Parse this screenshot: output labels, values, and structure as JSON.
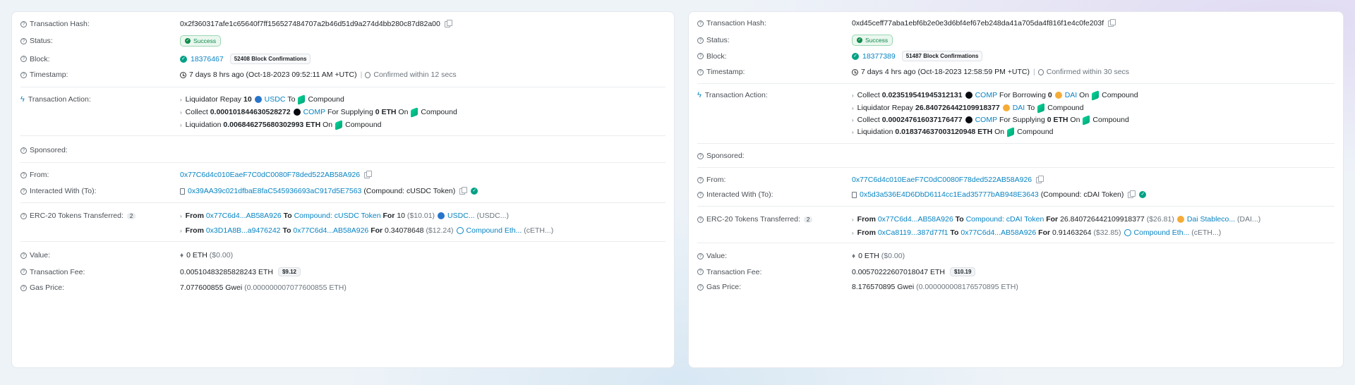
{
  "labels": {
    "tx_hash": "Transaction Hash:",
    "status": "Status:",
    "block": "Block:",
    "timestamp": "Timestamp:",
    "tx_action": "Transaction Action:",
    "sponsored": "Sponsored:",
    "from": "From:",
    "interacted": "Interacted With (To):",
    "erc20": "ERC-20 Tokens Transferred:",
    "value": "Value:",
    "tx_fee": "Transaction Fee:",
    "gas_price": "Gas Price:"
  },
  "common": {
    "success": "Success",
    "to": "To",
    "on": "On",
    "from_word": "From",
    "for_word": "For",
    "compound": "Compound",
    "confirmed_sep": "|"
  },
  "left": {
    "tx_hash": "0x2f360317afe1c65640f7ff156527484707a2b46d51d9a274d4bb280c87d82a00",
    "block_number": "18376467",
    "block_confirmations": "52408 Block Confirmations",
    "timestamp": "7 days 8 hrs ago (Oct-18-2023 09:52:11 AM +UTC)",
    "confirmed_within": "Confirmed within 12 secs",
    "actions": [
      {
        "verb": "Liquidator Repay",
        "amount": "10",
        "token": "USDC",
        "rest": "To",
        "protocol": "Compound"
      },
      {
        "verb": "Collect",
        "amount": "0.000101844630528272",
        "token": "COMP",
        "rest": "For Supplying",
        "amount2": "0 ETH",
        "protocol": "Compound"
      },
      {
        "verb": "Liquidation",
        "amount": "0.006846275680302993 ETH",
        "protocol": "Compound"
      }
    ],
    "from": "0x77C6d4c010EaeF7C0dC0080F78ded522AB58A926",
    "interacted_address": "0x39AA39c021dfbaE8faC545936693aC917d5E7563",
    "interacted_name": "(Compound: cUSDC Token)",
    "erc20_count": "2",
    "transfers": [
      {
        "from": "0x77C6d4...AB58A926",
        "to": "Compound: cUSDC Token",
        "amount": "10",
        "usd": "($10.01)",
        "token": "USDC...",
        "symbol": "(USDC...)"
      },
      {
        "from": "0x3D1A8B...a9476242",
        "to": "0x77C6d4...AB58A926",
        "amount": "0.34078648",
        "usd": "($12.24)",
        "token": "Compound Eth...",
        "symbol": "(cETH...)"
      }
    ],
    "value": "0 ETH",
    "value_usd": "($0.00)",
    "fee": "0.00510483285828243 ETH",
    "fee_usd": "$9.12",
    "gas_price": "7.077600855 Gwei",
    "gas_price_eth": "(0.000000007077600855 ETH)"
  },
  "right": {
    "tx_hash": "0xd45ceff77aba1ebf6b2e0e3d6bf4ef67eb248da41a705da4f816f1e4c0fe203f",
    "block_number": "18377389",
    "block_confirmations": "51487 Block Confirmations",
    "timestamp": "7 days 4 hrs ago (Oct-18-2023 12:58:59 PM +UTC)",
    "confirmed_within": "Confirmed within 30 secs",
    "actions": [
      {
        "verb": "Collect",
        "amount": "0.023519541945312131",
        "token": "COMP",
        "rest": "For Borrowing",
        "amount2": "0",
        "token2": "DAI",
        "protocol": "Compound"
      },
      {
        "verb": "Liquidator Repay",
        "amount": "26.840726442109918377",
        "token": "DAI",
        "rest": "To",
        "protocol": "Compound"
      },
      {
        "verb": "Collect",
        "amount": "0.000247616037176477",
        "token": "COMP",
        "rest": "For Supplying",
        "amount2": "0 ETH",
        "protocol": "Compound"
      },
      {
        "verb": "Liquidation",
        "amount": "0.018374637003120948 ETH",
        "protocol": "Compound"
      }
    ],
    "from": "0x77C6d4c010EaeF7C0dC0080F78ded522AB58A926",
    "interacted_address": "0x5d3a536E4D6DbD6114cc1Ead35777bAB948E3643",
    "interacted_name": "(Compound: cDAI Token)",
    "erc20_count": "2",
    "transfers": [
      {
        "from": "0x77C6d4...AB58A926",
        "to": "Compound: cDAI Token",
        "amount": "26.840726442109918377",
        "usd": "($26.81)",
        "token": "Dai Stableco...",
        "symbol": "(DAI...)"
      },
      {
        "from": "0xCa8119...387d77f1",
        "to": "0x77C6d4...AB58A926",
        "amount": "0.91463264",
        "usd": "($32.85)",
        "token": "Compound Eth...",
        "symbol": "(cETH...)"
      }
    ],
    "value": "0 ETH",
    "value_usd": "($0.00)",
    "fee": "0.00570222607018047 ETH",
    "fee_usd": "$10.19",
    "gas_price": "8.176570895 Gwei",
    "gas_price_eth": "(0.000000008176570895 ETH)"
  }
}
